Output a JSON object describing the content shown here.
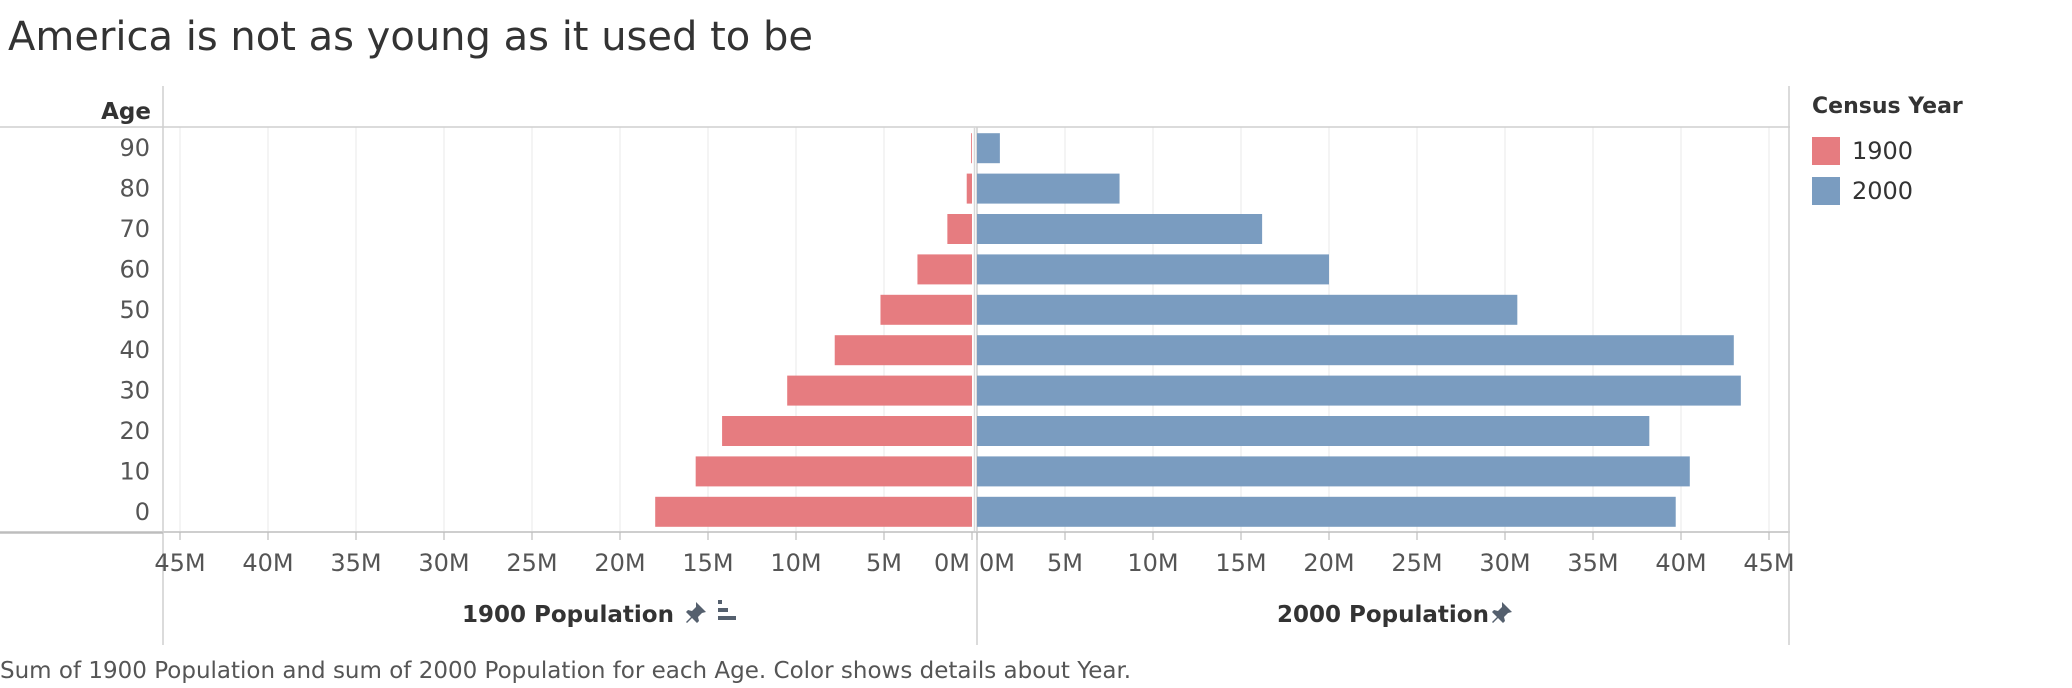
{
  "title": "America is not as young as it used to be",
  "caption": "Sum of 1900 Population and sum of 2000 Population for each Age.  Color shows details about Year.",
  "legend": {
    "title": "Census Year",
    "items": [
      {
        "label": "1900",
        "color": "#e67c80"
      },
      {
        "label": "2000",
        "color": "#7a9cc0"
      }
    ]
  },
  "icons": {
    "left_axis": [
      "pin-icon",
      "sort-icon"
    ],
    "right_axis": [
      "pin-icon"
    ]
  },
  "chart_data": {
    "type": "bar",
    "orientation": "horizontal",
    "layout": "population-pyramid",
    "row_header": "Age",
    "categories": [
      "90",
      "80",
      "70",
      "60",
      "50",
      "40",
      "30",
      "20",
      "10",
      "0"
    ],
    "series": [
      {
        "name": "1900",
        "axis_label": "1900 Population",
        "direction": "left",
        "values": [
          0.05,
          0.3,
          1.4,
          3.1,
          5.2,
          7.8,
          10.5,
          14.2,
          15.7,
          18.0
        ]
      },
      {
        "name": "2000",
        "axis_label": "2000 Population",
        "direction": "right",
        "values": [
          1.3,
          8.1,
          16.2,
          20.0,
          30.7,
          43.0,
          43.4,
          38.2,
          40.5,
          39.7
        ]
      }
    ],
    "unit": "M",
    "xlim": [
      0,
      46
    ],
    "ticks": [
      0,
      5,
      10,
      15,
      20,
      25,
      30,
      35,
      40,
      45
    ],
    "tick_labels": [
      "0M",
      "5M",
      "10M",
      "15M",
      "20M",
      "25M",
      "30M",
      "35M",
      "40M",
      "45M"
    ],
    "grid": true,
    "legend_position": "right"
  }
}
